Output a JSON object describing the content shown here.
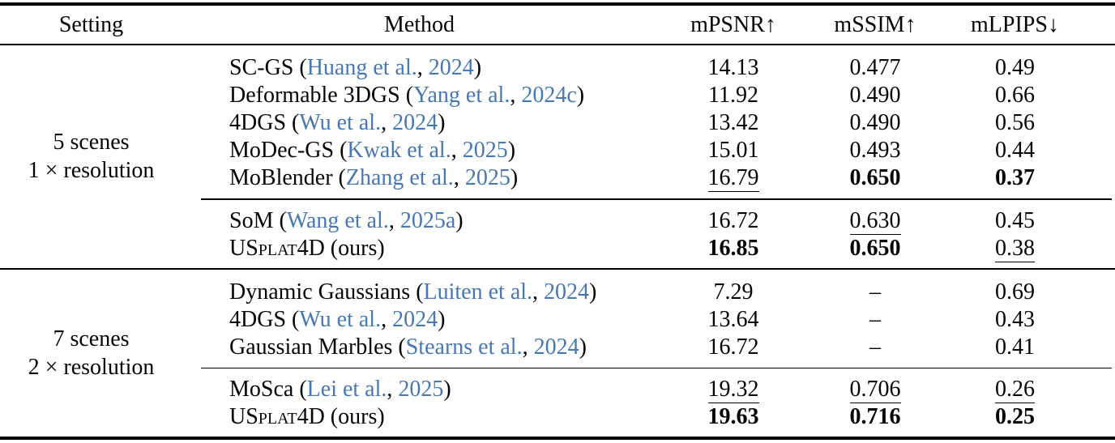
{
  "colors": {
    "link": "#4678b4",
    "text": "#050505",
    "background": "#ffffff"
  },
  "table": {
    "headers": {
      "setting": "Setting",
      "method": "Method",
      "mpsnr": "mPSNR↑",
      "mssim": "mSSIM↑",
      "mlpips": "mLPIPS↓"
    },
    "sections": [
      {
        "setting_lines": [
          "5 scenes",
          "1 × resolution"
        ],
        "groups": [
          {
            "rows": [
              {
                "name": "SC-GS",
                "sc": false,
                "suffix": "",
                "cite": {
                  "prefix": " (",
                  "name": "Huang et al.",
                  "sep": ", ",
                  "year": "2024",
                  "suffix": ")"
                },
                "cells": [
                  {
                    "v": "14.13",
                    "b": false,
                    "u": false
                  },
                  {
                    "v": "0.477",
                    "b": false,
                    "u": false
                  },
                  {
                    "v": "0.49",
                    "b": false,
                    "u": false
                  }
                ]
              },
              {
                "name": "Deformable 3DGS",
                "sc": false,
                "suffix": "",
                "cite": {
                  "prefix": " (",
                  "name": "Yang et al.",
                  "sep": ", ",
                  "year": "2024c",
                  "suffix": ")"
                },
                "cells": [
                  {
                    "v": "11.92",
                    "b": false,
                    "u": false
                  },
                  {
                    "v": "0.490",
                    "b": false,
                    "u": false
                  },
                  {
                    "v": "0.66",
                    "b": false,
                    "u": false
                  }
                ]
              },
              {
                "name": "4DGS",
                "sc": false,
                "suffix": "",
                "cite": {
                  "prefix": " (",
                  "name": "Wu et al.",
                  "sep": ", ",
                  "year": "2024",
                  "suffix": ")"
                },
                "cells": [
                  {
                    "v": "13.42",
                    "b": false,
                    "u": false
                  },
                  {
                    "v": "0.490",
                    "b": false,
                    "u": false
                  },
                  {
                    "v": "0.56",
                    "b": false,
                    "u": false
                  }
                ]
              },
              {
                "name": "MoDec-GS",
                "sc": false,
                "suffix": "",
                "cite": {
                  "prefix": " (",
                  "name": "Kwak et al.",
                  "sep": ", ",
                  "year": "2025",
                  "suffix": ")"
                },
                "cells": [
                  {
                    "v": "15.01",
                    "b": false,
                    "u": false
                  },
                  {
                    "v": "0.493",
                    "b": false,
                    "u": false
                  },
                  {
                    "v": "0.44",
                    "b": false,
                    "u": false
                  }
                ]
              },
              {
                "name": "MoBlender",
                "sc": false,
                "suffix": "",
                "cite": {
                  "prefix": " (",
                  "name": "Zhang et al.",
                  "sep": ", ",
                  "year": "2025",
                  "suffix": ")"
                },
                "cells": [
                  {
                    "v": "16.79",
                    "b": false,
                    "u": true
                  },
                  {
                    "v": "0.650",
                    "b": true,
                    "u": false
                  },
                  {
                    "v": "0.37",
                    "b": true,
                    "u": false
                  }
                ]
              }
            ]
          },
          {
            "rows": [
              {
                "name": "SoM",
                "sc": false,
                "suffix": "",
                "cite": {
                  "prefix": " (",
                  "name": "Wang et al.",
                  "sep": ", ",
                  "year": "2025a",
                  "suffix": ")"
                },
                "cells": [
                  {
                    "v": "16.72",
                    "b": false,
                    "u": false
                  },
                  {
                    "v": "0.630",
                    "b": false,
                    "u": true
                  },
                  {
                    "v": "0.45",
                    "b": false,
                    "u": false
                  }
                ]
              },
              {
                "name": "USplat4D",
                "sc": true,
                "suffix": " (ours)",
                "cite": null,
                "cells": [
                  {
                    "v": "16.85",
                    "b": true,
                    "u": false
                  },
                  {
                    "v": "0.650",
                    "b": true,
                    "u": false
                  },
                  {
                    "v": "0.38",
                    "b": false,
                    "u": true
                  }
                ]
              }
            ]
          }
        ]
      },
      {
        "setting_lines": [
          "7 scenes",
          "2 × resolution"
        ],
        "groups": [
          {
            "rows": [
              {
                "name": "Dynamic Gaussians",
                "sc": false,
                "suffix": "",
                "cite": {
                  "prefix": " (",
                  "name": "Luiten et al.",
                  "sep": ", ",
                  "year": "2024",
                  "suffix": ")"
                },
                "cells": [
                  {
                    "v": "7.29",
                    "b": false,
                    "u": false
                  },
                  {
                    "v": "–",
                    "b": false,
                    "u": false
                  },
                  {
                    "v": "0.69",
                    "b": false,
                    "u": false
                  }
                ]
              },
              {
                "name": "4DGS",
                "sc": false,
                "suffix": "",
                "cite": {
                  "prefix": " (",
                  "name": "Wu et al.",
                  "sep": ", ",
                  "year": "2024",
                  "suffix": ")"
                },
                "cells": [
                  {
                    "v": "13.64",
                    "b": false,
                    "u": false
                  },
                  {
                    "v": "–",
                    "b": false,
                    "u": false
                  },
                  {
                    "v": "0.43",
                    "b": false,
                    "u": false
                  }
                ]
              },
              {
                "name": "Gaussian Marbles",
                "sc": false,
                "suffix": "",
                "cite": {
                  "prefix": " (",
                  "name": "Stearns et al.",
                  "sep": ", ",
                  "year": "2024",
                  "suffix": ")"
                },
                "cells": [
                  {
                    "v": "16.72",
                    "b": false,
                    "u": false
                  },
                  {
                    "v": "–",
                    "b": false,
                    "u": false
                  },
                  {
                    "v": "0.41",
                    "b": false,
                    "u": false
                  }
                ]
              }
            ]
          },
          {
            "rows": [
              {
                "name": "MoSca",
                "sc": false,
                "suffix": "",
                "cite": {
                  "prefix": " (",
                  "name": "Lei et al.",
                  "sep": ", ",
                  "year": "2025",
                  "suffix": ")"
                },
                "cells": [
                  {
                    "v": "19.32",
                    "b": false,
                    "u": true
                  },
                  {
                    "v": "0.706",
                    "b": false,
                    "u": true
                  },
                  {
                    "v": "0.26",
                    "b": false,
                    "u": true
                  }
                ]
              },
              {
                "name": "USplat4D",
                "sc": true,
                "suffix": " (ours)",
                "cite": null,
                "cells": [
                  {
                    "v": "19.63",
                    "b": true,
                    "u": false
                  },
                  {
                    "v": "0.716",
                    "b": true,
                    "u": false
                  },
                  {
                    "v": "0.25",
                    "b": true,
                    "u": false
                  }
                ]
              }
            ]
          }
        ]
      }
    ]
  }
}
